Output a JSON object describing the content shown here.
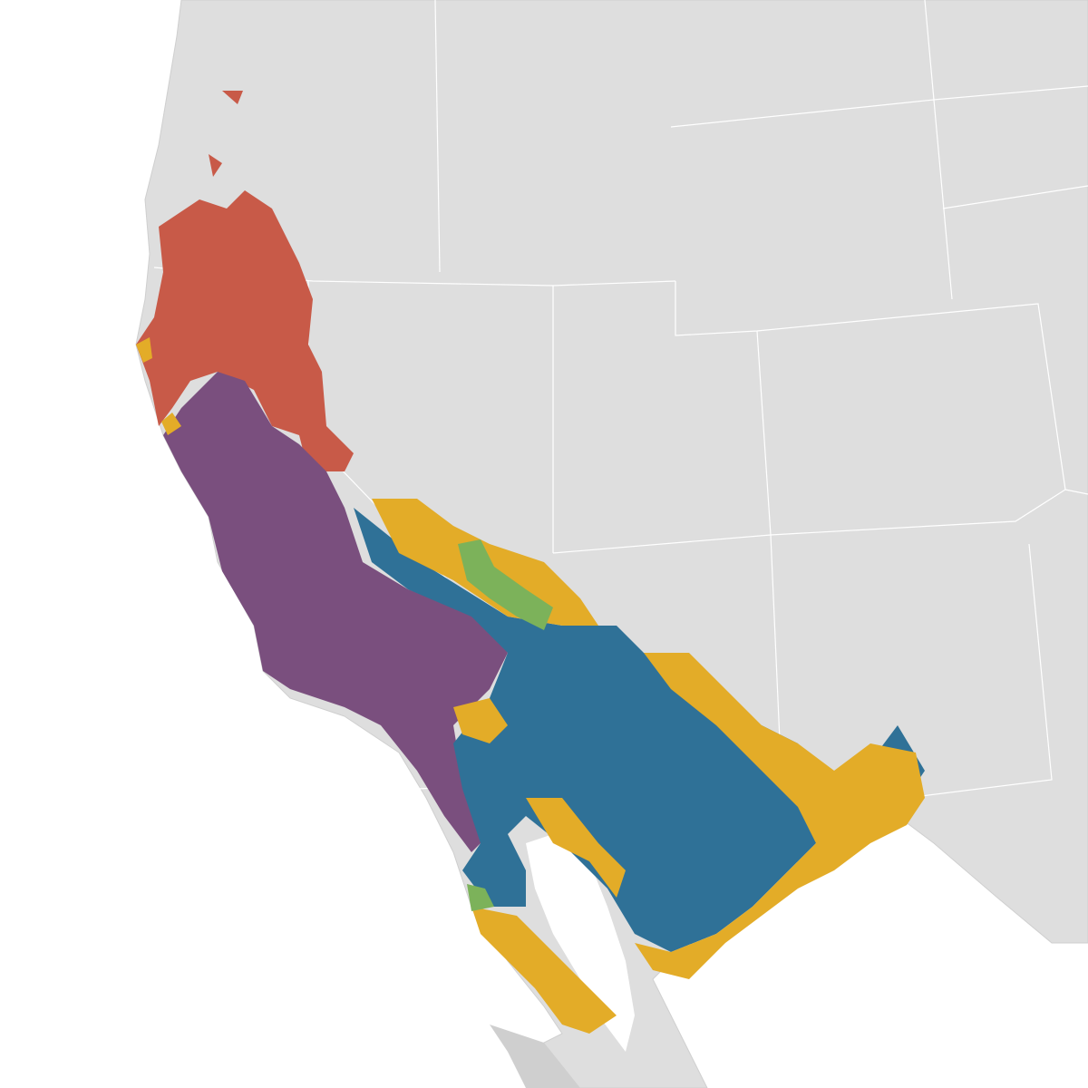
{
  "map": {
    "colors": {
      "water": "#ffffff",
      "land": "#dedede",
      "land_shade": "#cfcfcf",
      "borders": "#ffffff",
      "region_red": "#c85a48",
      "region_purple": "#7a4f7e",
      "region_blue": "#2f7197",
      "region_yellow": "#e3ac28",
      "region_green": "#7cb25a"
    }
  }
}
